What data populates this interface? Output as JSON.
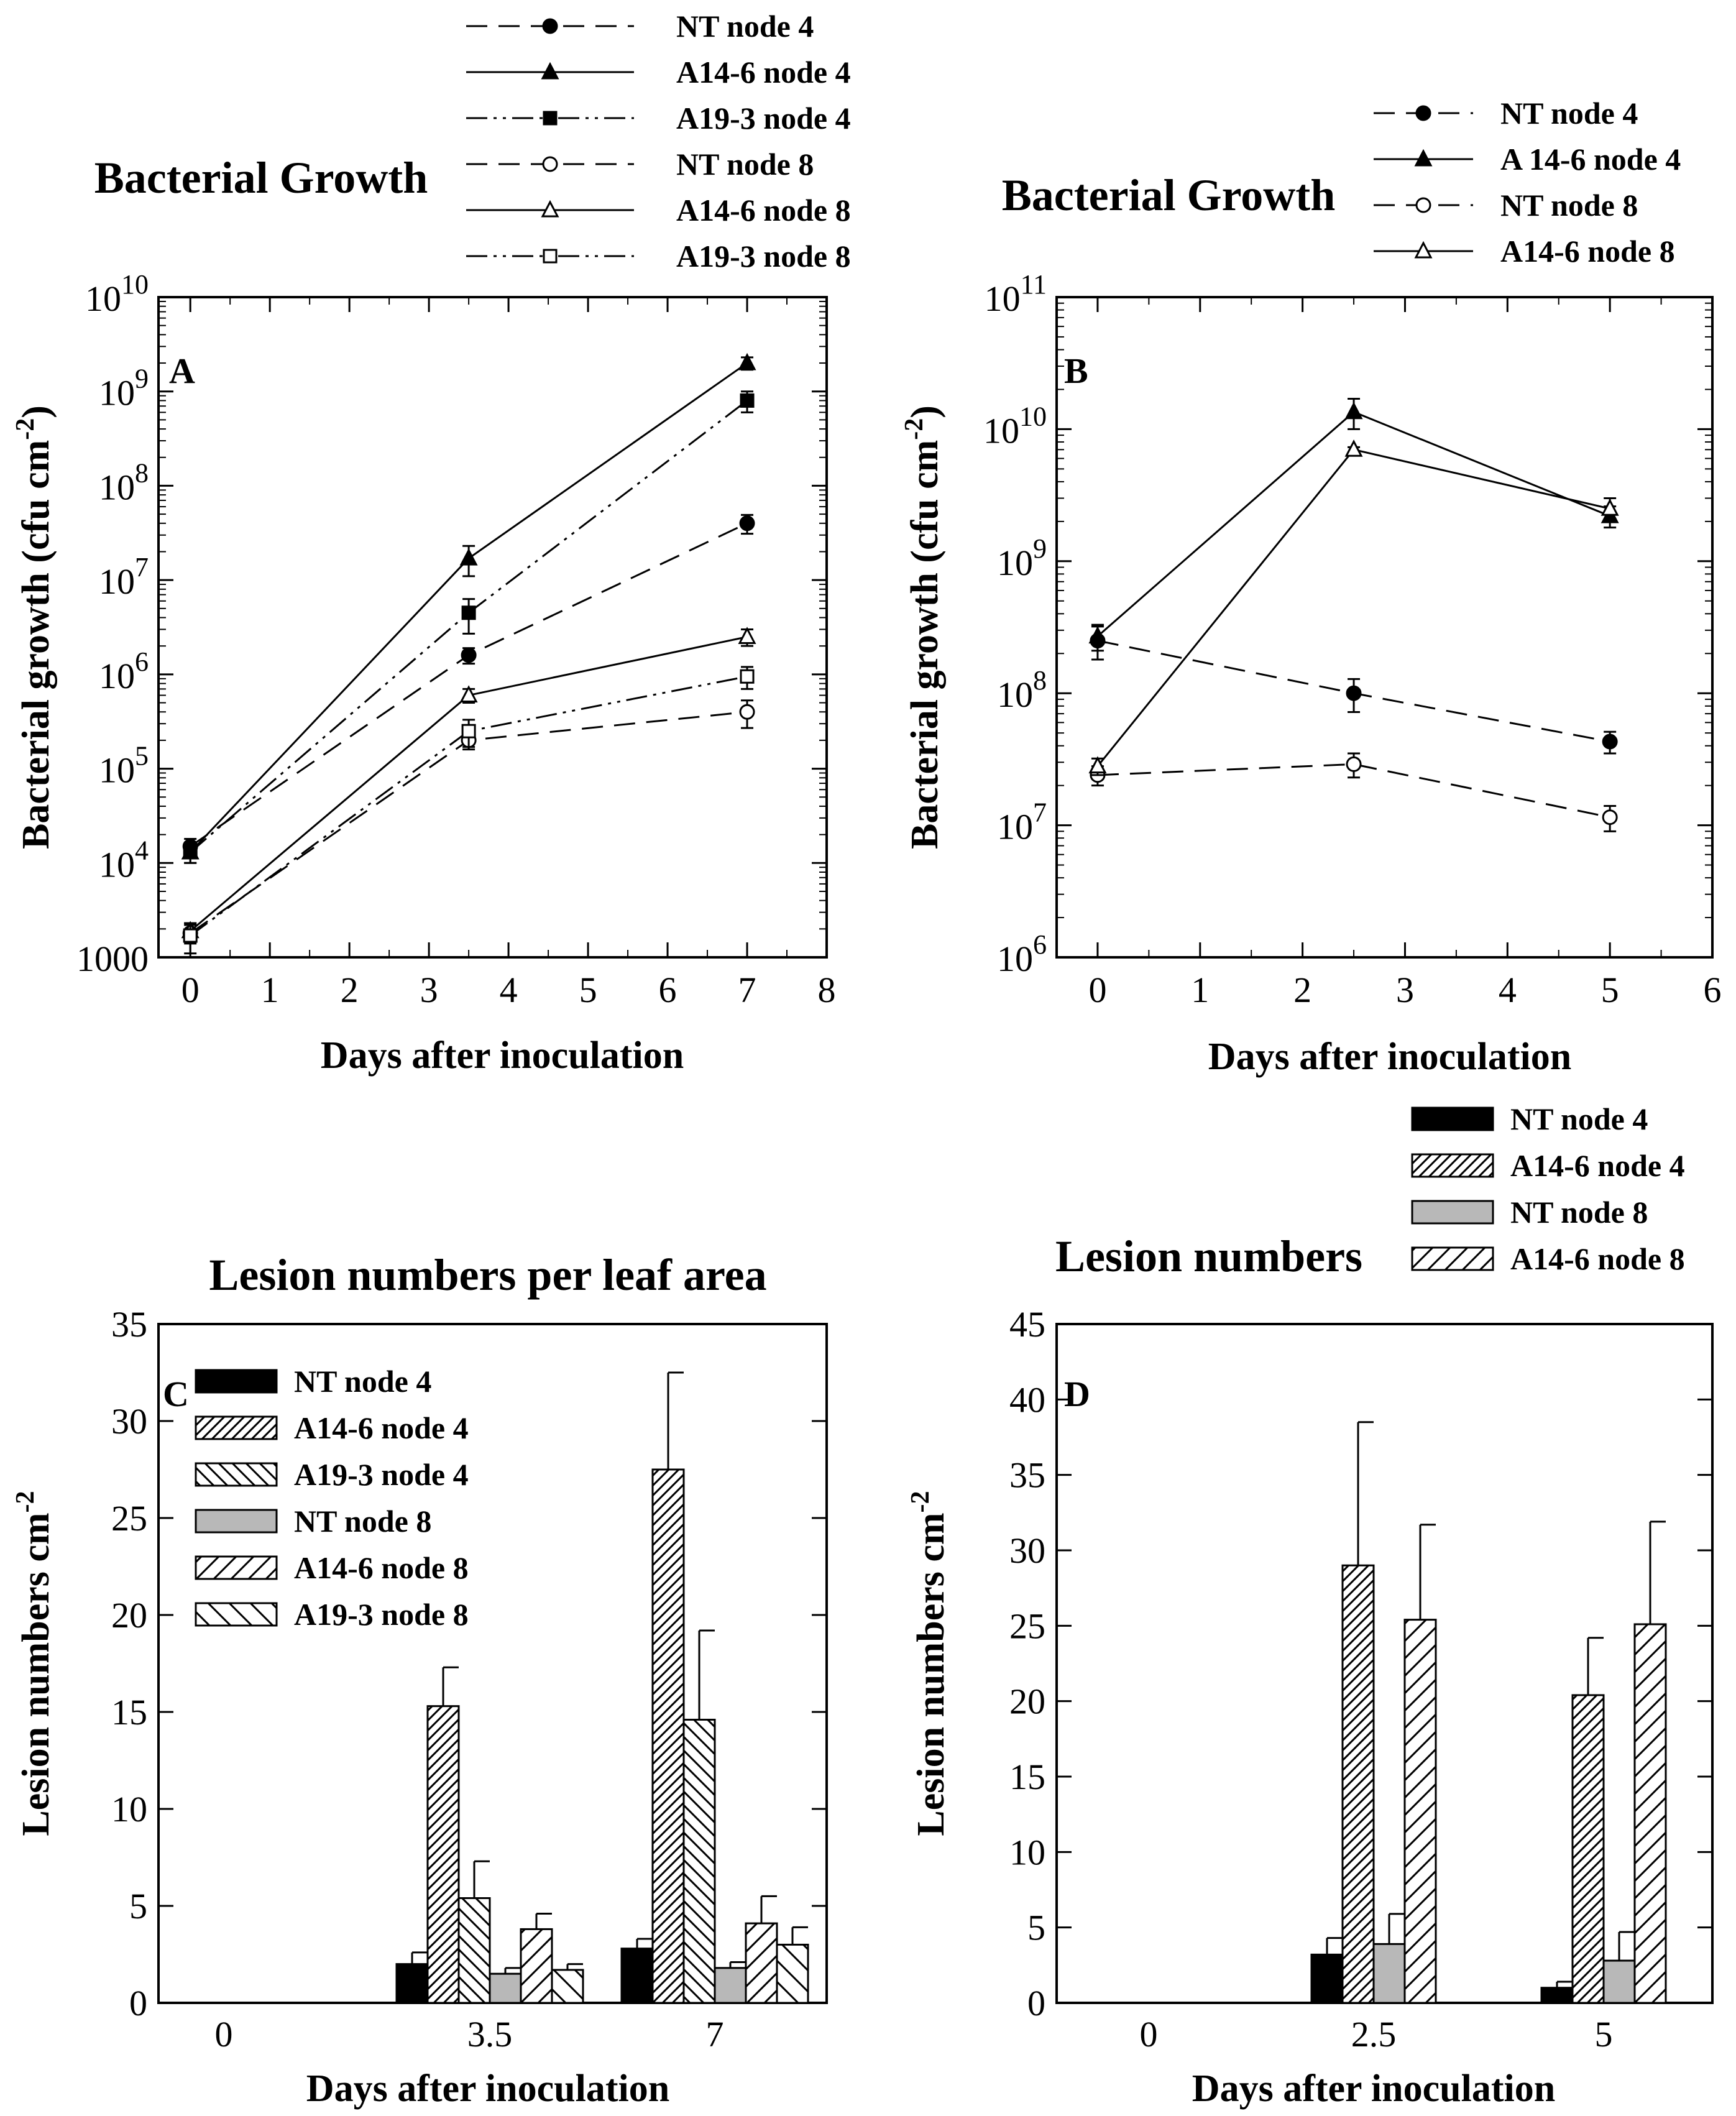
{
  "chart_data": [
    {
      "panel": "A",
      "type": "line",
      "title": "Bacterial Growth",
      "xlabel": "Days after inoculation",
      "ylabel": "Bacterial growth (cfu cm-2)",
      "ylabel_main": "Bacterial growth (cfu cm",
      "ylabel_sup": "-2",
      "ylabel_close": ")",
      "yscale": "log",
      "xlim": [
        -0.4,
        8
      ],
      "ylim": [
        1000,
        10000000000
      ],
      "x_ticks": [
        "0",
        "1",
        "2",
        "3",
        "4",
        "5",
        "6",
        "7",
        "8"
      ],
      "y_ticks": [
        {
          "value": 1000,
          "base": "1000",
          "exp": ""
        },
        {
          "value": 10000,
          "base": "10",
          "exp": "4"
        },
        {
          "value": 100000,
          "base": "10",
          "exp": "5"
        },
        {
          "value": 1000000,
          "base": "10",
          "exp": "6"
        },
        {
          "value": 10000000,
          "base": "10",
          "exp": "7"
        },
        {
          "value": 100000000,
          "base": "10",
          "exp": "8"
        },
        {
          "value": 1000000000,
          "base": "10",
          "exp": "9"
        },
        {
          "value": 10000000000,
          "base": "10",
          "exp": "10"
        }
      ],
      "legend_position": "top",
      "series": [
        {
          "name": "NT node 4",
          "dash": "dashed",
          "marker": "circle",
          "filled": true,
          "x": [
            0,
            3.5,
            7
          ],
          "y": [
            15000,
            1600000,
            40000000
          ],
          "err": [
            3000,
            300000,
            9000000
          ]
        },
        {
          "name": "A14-6 node 4",
          "dash": "solid",
          "marker": "triangle",
          "filled": true,
          "x": [
            0,
            3.5,
            7
          ],
          "y": [
            13000,
            17000000,
            2000000000
          ],
          "err": [
            3000,
            6000000,
            300000000
          ]
        },
        {
          "name": "A19-3 node 4",
          "dash": "dashdotdot",
          "marker": "square",
          "filled": true,
          "x": [
            0,
            3.5,
            7
          ],
          "y": [
            13000,
            4500000,
            800000000
          ],
          "err": [
            3000,
            1800000,
            200000000
          ]
        },
        {
          "name": "NT node 8",
          "dash": "dashed",
          "marker": "circle",
          "filled": false,
          "x": [
            0,
            3.5,
            7
          ],
          "y": [
            1800,
            200000,
            400000
          ],
          "err": [
            400,
            40000,
            130000
          ]
        },
        {
          "name": "A14-6 node 8",
          "dash": "solid",
          "marker": "triangle",
          "filled": false,
          "x": [
            0,
            3.5,
            7
          ],
          "y": [
            1900,
            600000,
            2500000
          ],
          "err": [
            400,
            100000,
            500000
          ]
        },
        {
          "name": "A19-3 node 8",
          "dash": "dashdotdot",
          "marker": "square",
          "filled": false,
          "x": [
            0,
            3.5,
            7
          ],
          "y": [
            1700,
            250000,
            950000
          ],
          "err": [
            600,
            80000,
            250000
          ]
        }
      ]
    },
    {
      "panel": "B",
      "type": "line",
      "title": "Bacterial Growth",
      "xlabel": "Days after inoculation",
      "ylabel": "Bacterial growth (cfu cm-2)",
      "ylabel_main": "Bacterial growth (cfu cm",
      "ylabel_sup": "-2",
      "ylabel_close": ")",
      "yscale": "log",
      "xlim": [
        -0.4,
        6
      ],
      "ylim": [
        1000000,
        100000000000
      ],
      "x_ticks": [
        "0",
        "1",
        "2",
        "3",
        "4",
        "5",
        "6"
      ],
      "y_ticks": [
        {
          "value": 1000000,
          "base": "10",
          "exp": "6"
        },
        {
          "value": 10000000,
          "base": "10",
          "exp": "7"
        },
        {
          "value": 100000000,
          "base": "10",
          "exp": "8"
        },
        {
          "value": 1000000000,
          "base": "10",
          "exp": "9"
        },
        {
          "value": 10000000000,
          "base": "10",
          "exp": "10"
        },
        {
          "value": 100000000000,
          "base": "10",
          "exp": "11"
        }
      ],
      "legend_position": "top-right",
      "series": [
        {
          "name": "NT node 4",
          "dash": "dashed",
          "marker": "circle",
          "filled": true,
          "x": [
            0,
            2.5,
            5
          ],
          "y": [
            250000000,
            100000000,
            43000000
          ],
          "err": [
            70000000,
            28000000,
            8000000
          ]
        },
        {
          "name": "A 14-6 node 4",
          "dash": "solid",
          "marker": "triangle",
          "filled": true,
          "x": [
            0,
            2.5,
            5
          ],
          "y": [
            270000000,
            13500000000,
            2200000000
          ],
          "err": [
            60000000,
            3500000000,
            400000000
          ]
        },
        {
          "name": "NT node 8",
          "dash": "dashed",
          "marker": "circle",
          "filled": false,
          "x": [
            0,
            2.5,
            5
          ],
          "y": [
            24000000,
            29000000,
            11500000
          ],
          "err": [
            4000000,
            6000000,
            2500000
          ]
        },
        {
          "name": "A14-6 node 8",
          "dash": "solid",
          "marker": "triangle",
          "filled": false,
          "x": [
            0,
            2.5,
            5
          ],
          "y": [
            28000000,
            7000000000,
            2500000000
          ],
          "err": [
            4000000,
            300000000,
            500000000
          ]
        }
      ]
    },
    {
      "panel": "C",
      "type": "bar",
      "title": "Lesion numbers per leaf area",
      "xlabel": "Days after inoculation",
      "ylabel": "Lesion numbers cm-2",
      "ylabel_main": "Lesion numbers cm",
      "ylabel_sup": "-2",
      "ylim": [
        0,
        35
      ],
      "y_ticks": [
        "0",
        "5",
        "10",
        "15",
        "20",
        "25",
        "30",
        "35"
      ],
      "categories": [
        "0",
        "3.5",
        "7"
      ],
      "legend_position": "top-left (inside)",
      "series": [
        {
          "name": "NT node 4",
          "pattern": "black",
          "values": [
            0,
            2.0,
            2.8
          ],
          "err": [
            0,
            0.6,
            0.5
          ]
        },
        {
          "name": "A14-6 node 4",
          "pattern": "hatch-right-dense",
          "values": [
            0,
            15.3,
            27.5
          ],
          "err": [
            0,
            2.0,
            5.0
          ]
        },
        {
          "name": "A19-3 node 4",
          "pattern": "hatch-left",
          "values": [
            0,
            5.4,
            14.6
          ],
          "err": [
            0,
            1.9,
            4.6
          ]
        },
        {
          "name": "NT node 8",
          "pattern": "gray",
          "values": [
            0,
            1.5,
            1.8
          ],
          "err": [
            0,
            0.3,
            0.3
          ]
        },
        {
          "name": "A14-6 node 8",
          "pattern": "hatch-right",
          "values": [
            0,
            3.8,
            4.1
          ],
          "err": [
            0,
            0.8,
            1.4
          ]
        },
        {
          "name": "A19-3 node 8",
          "pattern": "hatch-left-sparse",
          "values": [
            0,
            1.7,
            3.0
          ],
          "err": [
            0,
            0.3,
            0.9
          ]
        }
      ]
    },
    {
      "panel": "D",
      "type": "bar",
      "title": "Lesion numbers",
      "xlabel": "Days after inoculation",
      "ylabel": "Lesion numbers cm-2",
      "ylabel_main": "Lesion numbers cm",
      "ylabel_sup": "-2",
      "ylim": [
        0,
        45
      ],
      "y_ticks": [
        "0",
        "5",
        "10",
        "15",
        "20",
        "25",
        "30",
        "35",
        "40",
        "45"
      ],
      "categories": [
        "0",
        "2.5",
        "5"
      ],
      "legend_position": "top-right (outside)",
      "series": [
        {
          "name": "NT node 4",
          "pattern": "black",
          "values": [
            0,
            3.2,
            1.0
          ],
          "err": [
            0,
            1.1,
            0.4
          ]
        },
        {
          "name": "A14-6 node 4",
          "pattern": "hatch-right-dense",
          "values": [
            0,
            29.0,
            20.4
          ],
          "err": [
            0,
            9.5,
            3.8
          ]
        },
        {
          "name": "NT node 8",
          "pattern": "gray",
          "values": [
            0,
            3.9,
            2.8
          ],
          "err": [
            0,
            2.0,
            1.9
          ]
        },
        {
          "name": "A14-6 node 8",
          "pattern": "hatch-right",
          "values": [
            0,
            25.4,
            25.1
          ],
          "err": [
            0,
            6.3,
            6.8
          ]
        }
      ]
    }
  ]
}
